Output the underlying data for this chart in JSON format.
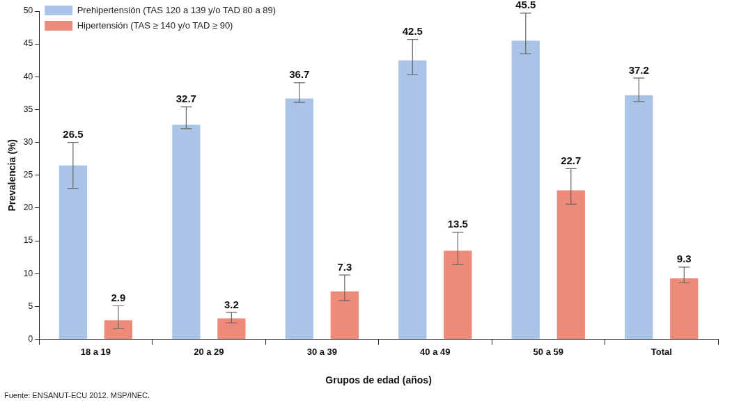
{
  "chart_data": {
    "type": "bar",
    "xlabel": "Grupos de edad (años)",
    "ylabel": "Prevalencia (%)",
    "categories": [
      "18 a 19",
      "20 a 29",
      "30 a 39",
      "40 a 49",
      "50 a 59",
      "Total"
    ],
    "series": [
      {
        "name": "Prehipertensión (TAS 120 a 139 y/o TAD 80 a 89)",
        "color": "#a9c4e6",
        "values": [
          26.5,
          32.7,
          36.7,
          42.5,
          45.5,
          37.2
        ],
        "errors": [
          [
            23.0,
            30.0
          ],
          [
            32.1,
            35.4
          ],
          [
            36.1,
            39.1
          ],
          [
            40.3,
            45.7
          ],
          [
            43.5,
            49.7
          ],
          [
            36.2,
            39.8
          ]
        ]
      },
      {
        "name": "Hipertensión (TAS ≥ 140 y/o TAD ≥ 90)",
        "color": "#ee8a7a",
        "values": [
          2.9,
          3.2,
          7.3,
          13.5,
          22.7,
          9.3
        ],
        "errors": [
          [
            1.6,
            5.1
          ],
          [
            2.5,
            4.1
          ],
          [
            5.9,
            9.8
          ],
          [
            11.4,
            16.3
          ],
          [
            20.6,
            26.0
          ],
          [
            8.6,
            11.0
          ]
        ]
      }
    ],
    "ylim": [
      0,
      50
    ],
    "yticks": [
      0,
      5,
      10,
      15,
      20,
      25,
      30,
      35,
      40,
      45,
      50
    ],
    "data_labels": true,
    "grid": false,
    "legend": "top left",
    "annotations": [
      "Fuente: ENSANUT-ECU 2012. MSP/INEC."
    ]
  }
}
